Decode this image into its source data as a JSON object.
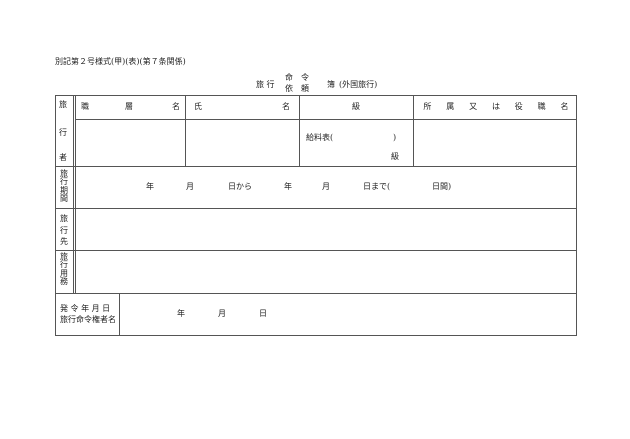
{
  "header": {
    "form_id": "別記第２号様式(甲)(表)(第７条関係)",
    "title_left": "旅 行",
    "title_top": "命　令",
    "title_bottom": "依　頼",
    "title_right": "簿",
    "title_suffix": "(外国旅行)"
  },
  "table": {
    "traveler_label": [
      "旅",
      "行",
      "者"
    ],
    "columns": {
      "position": [
        "職",
        "層",
        "名"
      ],
      "name": [
        "氏",
        "名"
      ],
      "grade": "級",
      "affiliation": [
        "所",
        "属",
        "又",
        "は",
        "役",
        "職",
        "名"
      ]
    },
    "salary_table": "給料表(",
    "salary_close": ")",
    "grade_suffix": "級",
    "period_label": "旅行期間",
    "period": {
      "year1": "年",
      "month1": "月",
      "from": "日から",
      "year2": "年",
      "month2": "月",
      "until": "日まで(",
      "days": "日間)"
    },
    "destination_label": "旅行先",
    "purpose_label": "旅行用務",
    "issue_label_1": "発 令 年 月 日",
    "issue_label_2": "旅行命令権者名",
    "issue_date": {
      "year": "年",
      "month": "月",
      "day": "日"
    }
  }
}
